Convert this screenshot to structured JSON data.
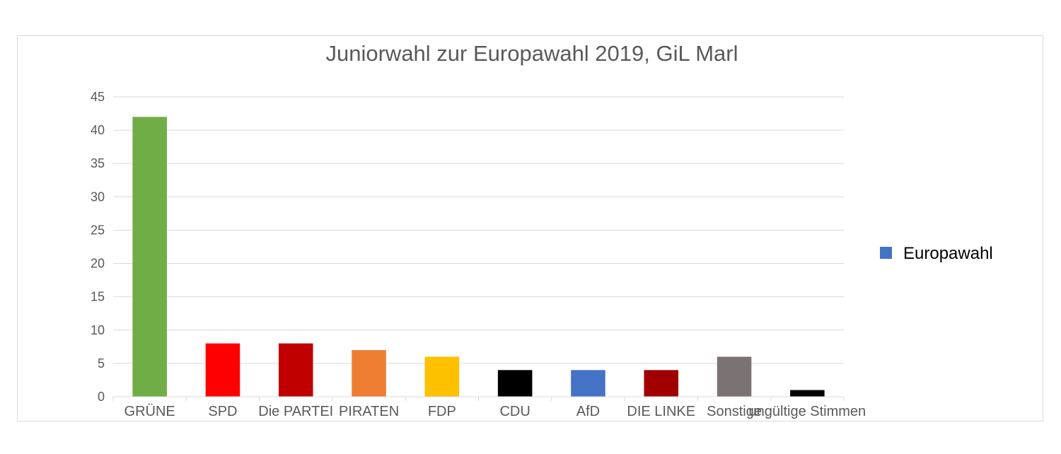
{
  "chart_data": {
    "type": "bar",
    "title": "Juniorwahl zur Europawahl 2019, GiL Marl",
    "xlabel": "",
    "ylabel": "",
    "ylim": [
      0,
      45
    ],
    "yticks": [
      0,
      5,
      10,
      15,
      20,
      25,
      30,
      35,
      40,
      45
    ],
    "grid": true,
    "legend_position": "right",
    "categories": [
      "GRÜNE",
      "SPD",
      "Die PARTEI",
      "PIRATEN",
      "FDP",
      "CDU",
      "AfD",
      "DIE LINKE",
      "Sonstige",
      "ungültige Stimmen"
    ],
    "series": [
      {
        "name": "Europawahl",
        "values": [
          42,
          8,
          8,
          7,
          6,
          4,
          4,
          4,
          6,
          1
        ],
        "legend_color": "#4472c4",
        "colors": [
          "#70ad47",
          "#ff0000",
          "#c00000",
          "#ed7d31",
          "#ffc000",
          "#000000",
          "#4472c4",
          "#a00000",
          "#7b7373",
          "#000000"
        ]
      }
    ]
  }
}
